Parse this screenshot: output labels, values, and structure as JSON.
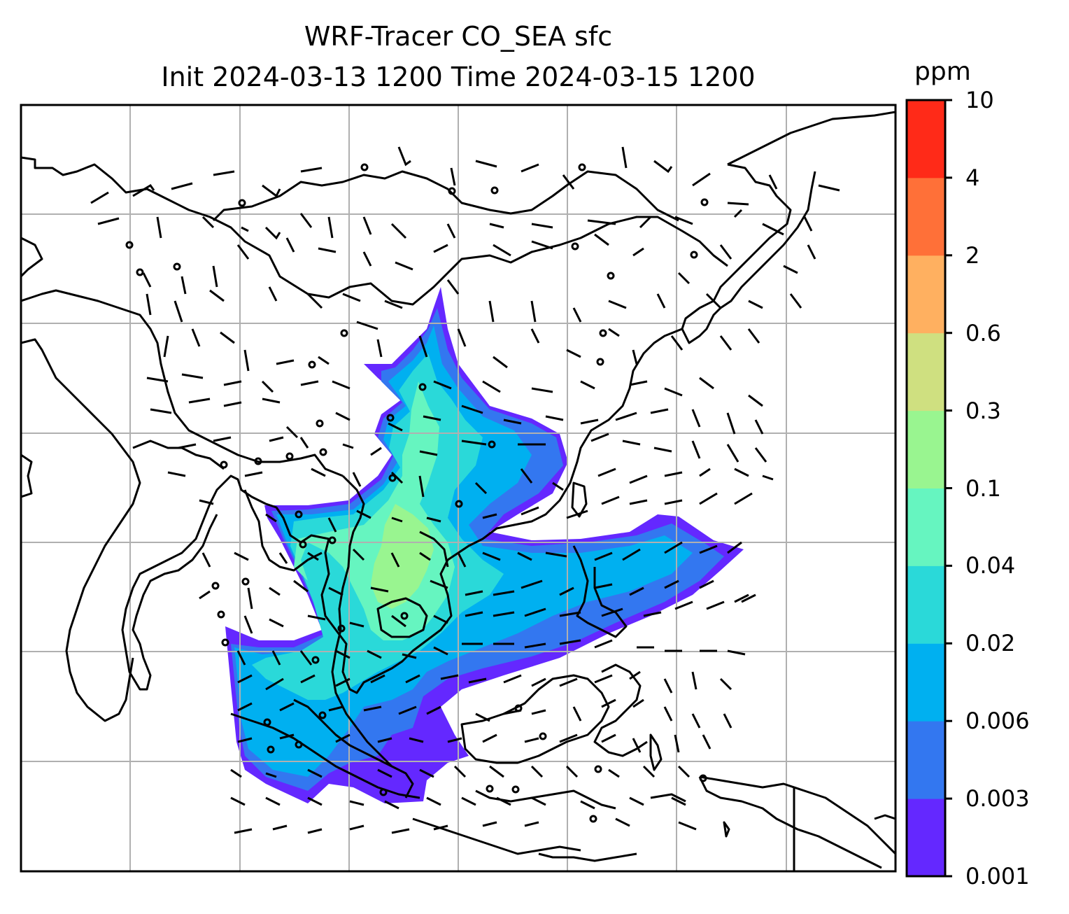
{
  "title": {
    "line1": "WRF-Tracer CO_SEA sfc",
    "line2": "Init 2024-03-13 1200 Time 2024-03-15 1200"
  },
  "colorbar": {
    "units": "ppm",
    "levels": [
      "0.001",
      "0.003",
      "0.006",
      "0.02",
      "0.04",
      "0.1",
      "0.3",
      "0.6",
      "2",
      "4",
      "10"
    ],
    "colors": [
      "#6428ff",
      "#3377f0",
      "#00b0f0",
      "#2ad9d9",
      "#66f5c0",
      "#99f590",
      "#cfe080",
      "#ffb060",
      "#ff7038",
      "#ff2a18"
    ]
  },
  "map": {
    "colors": {
      "coast": "#000000",
      "grid": "#b0b0b0",
      "barb": "#000000"
    },
    "plume_levels_shown": [
      "0.001",
      "0.003",
      "0.006",
      "0.02",
      "0.04",
      "0.1"
    ]
  }
}
